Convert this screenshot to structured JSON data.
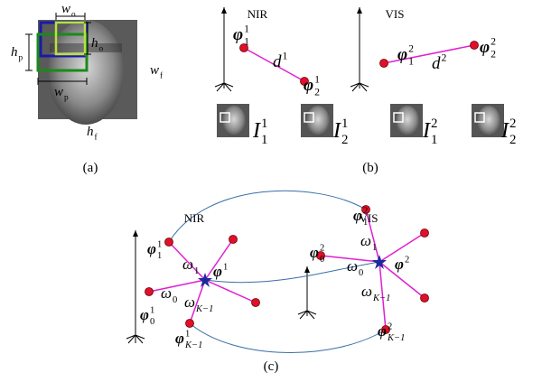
{
  "panel_a": {
    "caption": "(a)",
    "labels": [
      {
        "base": "w",
        "sub": "o"
      },
      {
        "base": "h",
        "sub": "o"
      },
      {
        "base": "h",
        "sub": "p"
      },
      {
        "base": "w",
        "sub": "p"
      },
      {
        "base": "w",
        "sub": "f"
      },
      {
        "base": "h",
        "sub": "f"
      }
    ]
  },
  "panel_b": {
    "caption": "(b)",
    "nir": "NIR",
    "vis": "VIS",
    "labels": [
      {
        "base": "φ",
        "sup": "1",
        "sub": "1"
      },
      {
        "base": "d",
        "sup": "1"
      },
      {
        "base": "φ",
        "sup": "1",
        "sub": "2"
      },
      {
        "base": "I",
        "sup": "1",
        "sub": "1"
      },
      {
        "base": "I",
        "sup": "1",
        "sub": "2"
      },
      {
        "base": "φ",
        "sup": "2",
        "sub": "1"
      },
      {
        "base": "d",
        "sup": "2"
      },
      {
        "base": "φ",
        "sup": "2",
        "sub": "2"
      },
      {
        "base": "I",
        "sup": "2",
        "sub": "1"
      },
      {
        "base": "I",
        "sup": "2",
        "sub": "2"
      }
    ]
  },
  "panel_c": {
    "caption": "(c)",
    "nir": "NIR",
    "vis": "VIS",
    "labels": [
      {
        "base": "φ",
        "sup": "1",
        "sub": "1"
      },
      {
        "base": "ω",
        "sub": "1"
      },
      {
        "base": "φ",
        "sup": "1"
      },
      {
        "base": "ω",
        "sub": "0"
      },
      {
        "base": "φ",
        "sup": "1",
        "sub": "0"
      },
      {
        "base": "ω",
        "sub": "K−1"
      },
      {
        "base": "φ",
        "sup": "1",
        "sub": "K−1"
      },
      {
        "base": "φ",
        "sup": "2",
        "sub": "1"
      },
      {
        "base": "ω",
        "sub": "1"
      },
      {
        "base": "φ",
        "sup": "2",
        "sub": "0"
      },
      {
        "base": "ω",
        "sub": "0"
      },
      {
        "base": "φ",
        "sup": "2"
      },
      {
        "base": "ω",
        "sub": "K−1"
      },
      {
        "base": "φ",
        "sup": "2",
        "sub": "K−1"
      }
    ]
  }
}
